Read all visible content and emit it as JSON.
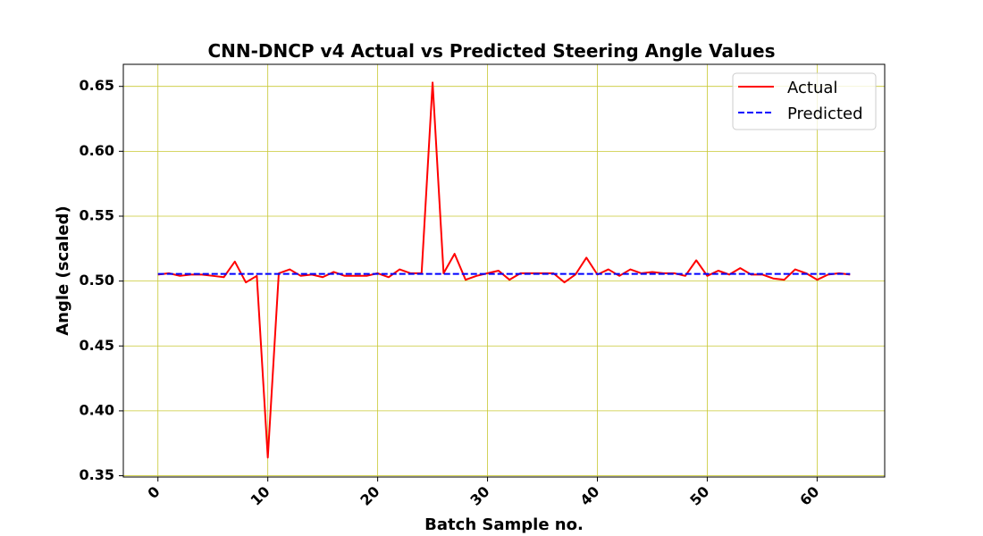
{
  "chart_data": {
    "type": "line",
    "title": "CNN-DNCP v4 Actual vs Predicted Steering Angle Values",
    "xlabel": "Batch Sample no.",
    "ylabel": "Angle (scaled)",
    "xlim": [
      -3.15,
      66.15
    ],
    "ylim": [
      0.349,
      0.667
    ],
    "xticks": [
      0,
      10,
      20,
      30,
      40,
      50,
      60
    ],
    "yticks": [
      0.35,
      0.4,
      0.45,
      0.5,
      0.55,
      0.6,
      0.65
    ],
    "grid": true,
    "grid_color": "#c8c832",
    "legend_position": "top-right",
    "x": [
      0,
      1,
      2,
      3,
      4,
      5,
      6,
      7,
      8,
      9,
      10,
      11,
      12,
      13,
      14,
      15,
      16,
      17,
      18,
      19,
      20,
      21,
      22,
      23,
      24,
      25,
      26,
      27,
      28,
      29,
      30,
      31,
      32,
      33,
      34,
      35,
      36,
      37,
      38,
      39,
      40,
      41,
      42,
      43,
      44,
      45,
      46,
      47,
      48,
      49,
      50,
      51,
      52,
      53,
      54,
      55,
      56,
      57,
      58,
      59,
      60,
      61,
      62,
      63
    ],
    "series": [
      {
        "name": "Actual",
        "color": "#ff0000",
        "style": "solid",
        "values": [
          0.505,
          0.506,
          0.504,
          0.505,
          0.505,
          0.504,
          0.503,
          0.515,
          0.499,
          0.504,
          0.364,
          0.506,
          0.509,
          0.504,
          0.505,
          0.503,
          0.507,
          0.504,
          0.504,
          0.504,
          0.506,
          0.503,
          0.509,
          0.506,
          0.506,
          0.653,
          0.506,
          0.521,
          0.501,
          0.504,
          0.506,
          0.508,
          0.501,
          0.506,
          0.506,
          0.506,
          0.506,
          0.499,
          0.505,
          0.518,
          0.505,
          0.509,
          0.504,
          0.509,
          0.506,
          0.507,
          0.506,
          0.506,
          0.504,
          0.516,
          0.504,
          0.508,
          0.505,
          0.51,
          0.505,
          0.505,
          0.502,
          0.501,
          0.509,
          0.506,
          0.501,
          0.505,
          0.506,
          0.505
        ]
      },
      {
        "name": "Predicted",
        "color": "#0000ff",
        "style": "dashed",
        "values": [
          0.5055,
          0.5055,
          0.5055,
          0.5055,
          0.5055,
          0.5055,
          0.5055,
          0.5055,
          0.5055,
          0.5055,
          0.5055,
          0.5055,
          0.5055,
          0.5055,
          0.5055,
          0.5055,
          0.5055,
          0.5055,
          0.5055,
          0.5055,
          0.5055,
          0.5055,
          0.5055,
          0.5055,
          0.5055,
          0.5055,
          0.5055,
          0.5055,
          0.5055,
          0.5055,
          0.5055,
          0.5055,
          0.5055,
          0.5055,
          0.5055,
          0.5055,
          0.5055,
          0.5055,
          0.5055,
          0.5055,
          0.5055,
          0.5055,
          0.5055,
          0.5055,
          0.5055,
          0.5055,
          0.5055,
          0.5055,
          0.5055,
          0.5055,
          0.5055,
          0.5055,
          0.5055,
          0.5055,
          0.5055,
          0.5055,
          0.5055,
          0.5055,
          0.5055,
          0.5055,
          0.5055,
          0.5055,
          0.5055,
          0.5055
        ]
      }
    ]
  }
}
